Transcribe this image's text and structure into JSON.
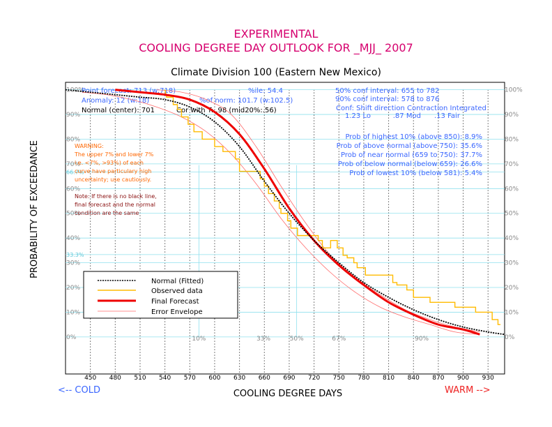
{
  "header": {
    "title_line1": "EXPERIMENTAL",
    "title_line2": "COOLING DEGREE DAY OUTLOOK FOR _MJJ_ 2007",
    "subtitle": "Climate Division 100 (Eastern New Mexico)"
  },
  "info": {
    "point_forecast": "Point forecast: 713 (w:718)",
    "pctile": "%ile: 54.4",
    "anomaly": "Anomaly: 12 (w:18)",
    "pct_norm": "%of norm: 101.7 (w:102.5)",
    "normal_center": "Normal (center): 701",
    "cor": "Cor with T: .98 (mid20%:.56)",
    "ci50": "50% conf interval: 655 to 782",
    "ci90": "90% conf interval: 578 to 876",
    "conf_header": "Conf: Shift direction  Contraction  Integrated",
    "conf_values": "1.23 Lo          .87 Mod      .13 Fair",
    "prob_highest": "Prob of highest 10% (above 850): 8.9%",
    "prob_above": "Prob of above normal (above 750): 35.6%",
    "prob_near": "Prob of near normal (659 to 750): 37.7%",
    "prob_below": "Prob of below normal (below 659): 26.6%",
    "prob_lowest": "Prob of lowest 10% (below 581): 5.4%"
  },
  "warning": {
    "lines": [
      "WARNING:",
      "The upper 7% and lower 7%",
      "i.e. <7%, >93%) of each",
      "curve have particulary high",
      "uncertainty; use cautiously."
    ]
  },
  "note": {
    "lines": [
      "Note: If there is no black line,",
      "final forecast and  the normal",
      "condition are the same"
    ]
  },
  "axes": {
    "xlabel": "COOLING DEGREE DAYS",
    "ylabel": "PROBABILITY OF EXCEEDANCE",
    "cold": "<-- COLD",
    "warm": "WARM -->"
  },
  "legend": {
    "normal": "Normal (Fitted)",
    "observed": "Observed data",
    "final": "Final Forecast",
    "error": "Error Envelope"
  },
  "colors": {
    "title": "#d6006e",
    "info_blue": "#3a66ff",
    "warning_orange": "#ff6600",
    "note_brown": "#8a1010",
    "normal": "#000000",
    "observed": "#ffbb00",
    "final": "#ee0000",
    "error": "#ff6b6b",
    "cyan": "#8fe0ee",
    "cold": "#3a66ff",
    "warm": "#ee2222"
  },
  "chart_data": {
    "type": "line",
    "xlim": [
      420,
      950
    ],
    "ylim": [
      -15,
      103
    ],
    "x_ticks": [
      450,
      480,
      510,
      540,
      570,
      600,
      630,
      660,
      690,
      720,
      750,
      780,
      810,
      840,
      870,
      900,
      930
    ],
    "y_ticks": [
      0,
      10,
      20,
      30,
      40,
      50,
      60,
      70,
      80,
      90,
      100
    ],
    "left_extra_labels": [
      {
        "y": 66.7,
        "label": "66.7%"
      },
      {
        "y": 33.3,
        "label": "33.3%"
      }
    ],
    "bottom_pct_labels": [
      {
        "x": 581,
        "label": "10%"
      },
      {
        "x": 659,
        "label": "33%"
      },
      {
        "x": 699,
        "label": "50%"
      },
      {
        "x": 750,
        "label": "67%"
      },
      {
        "x": 850,
        "label": "90%"
      }
    ],
    "cyan_vlines": [
      581,
      699
    ],
    "cyan_hlines": [
      66.7,
      33.3
    ],
    "series": [
      {
        "name": "Normal (Fitted)",
        "x": [
          420,
          450,
          480,
          510,
          540,
          570,
          600,
          630,
          660,
          690,
          720,
          750,
          780,
          810,
          840,
          870,
          900,
          930,
          950
        ],
        "y": [
          100,
          99,
          98,
          97,
          96,
          93,
          87,
          77,
          63,
          50,
          39,
          30,
          22,
          16,
          11,
          7,
          4,
          2,
          1
        ]
      },
      {
        "name": "Observed data",
        "x": [
          540,
          542,
          550,
          550,
          555,
          555,
          560,
          560,
          568,
          568,
          575,
          575,
          585,
          585,
          600,
          600,
          610,
          610,
          625,
          625,
          630,
          630,
          655,
          655,
          660,
          660,
          665,
          665,
          672,
          672,
          678,
          678,
          680,
          680,
          688,
          688,
          692,
          692,
          700,
          700,
          725,
          725,
          730,
          730,
          740,
          740,
          748,
          748,
          755,
          755,
          760,
          760,
          768,
          768,
          772,
          772,
          782,
          782,
          815,
          815,
          820,
          820,
          832,
          832,
          840,
          840,
          860,
          860,
          890,
          890,
          915,
          915,
          935,
          935,
          942,
          942,
          945
        ],
        "y": [
          100,
          97,
          97,
          94,
          94,
          92,
          92,
          89,
          89,
          86,
          86,
          83,
          83,
          80,
          80,
          77,
          77,
          75,
          75,
          72,
          72,
          67,
          67,
          64,
          64,
          61,
          61,
          58,
          58,
          55,
          55,
          52,
          52,
          50,
          50,
          47,
          47,
          44,
          44,
          41,
          41,
          39,
          39,
          36,
          36,
          39,
          39,
          36,
          36,
          33,
          33,
          32,
          32,
          30,
          30,
          28,
          28,
          25,
          25,
          22,
          22,
          21,
          21,
          19,
          19,
          16,
          16,
          14,
          14,
          12,
          12,
          10,
          10,
          7,
          7,
          5,
          5
        ]
      },
      {
        "name": "Final Forecast",
        "x": [
          480,
          510,
          540,
          570,
          600,
          630,
          660,
          690,
          720,
          750,
          780,
          810,
          840,
          870,
          900,
          920
        ],
        "y": [
          100,
          99,
          98,
          96,
          91,
          82,
          68,
          52,
          39,
          29,
          21,
          14,
          9,
          5,
          3,
          1
        ]
      },
      {
        "name": "Error Envelope (upper)",
        "x": [
          530,
          560,
          590,
          620,
          650,
          680,
          710,
          740,
          770,
          800,
          830,
          860,
          890,
          920
        ],
        "y": [
          100,
          99,
          96,
          90,
          77,
          61,
          46,
          33,
          24,
          17,
          11,
          7,
          4,
          2
        ]
      },
      {
        "name": "Error Envelope (lower)",
        "x": [
          440,
          470,
          500,
          530,
          560,
          590,
          620,
          650,
          680,
          710,
          740,
          770,
          800,
          830,
          860,
          890,
          920
        ],
        "y": [
          99,
          98,
          96,
          93,
          89,
          83,
          74,
          62,
          48,
          36,
          26,
          18,
          12,
          8,
          5,
          2,
          1
        ]
      }
    ]
  }
}
